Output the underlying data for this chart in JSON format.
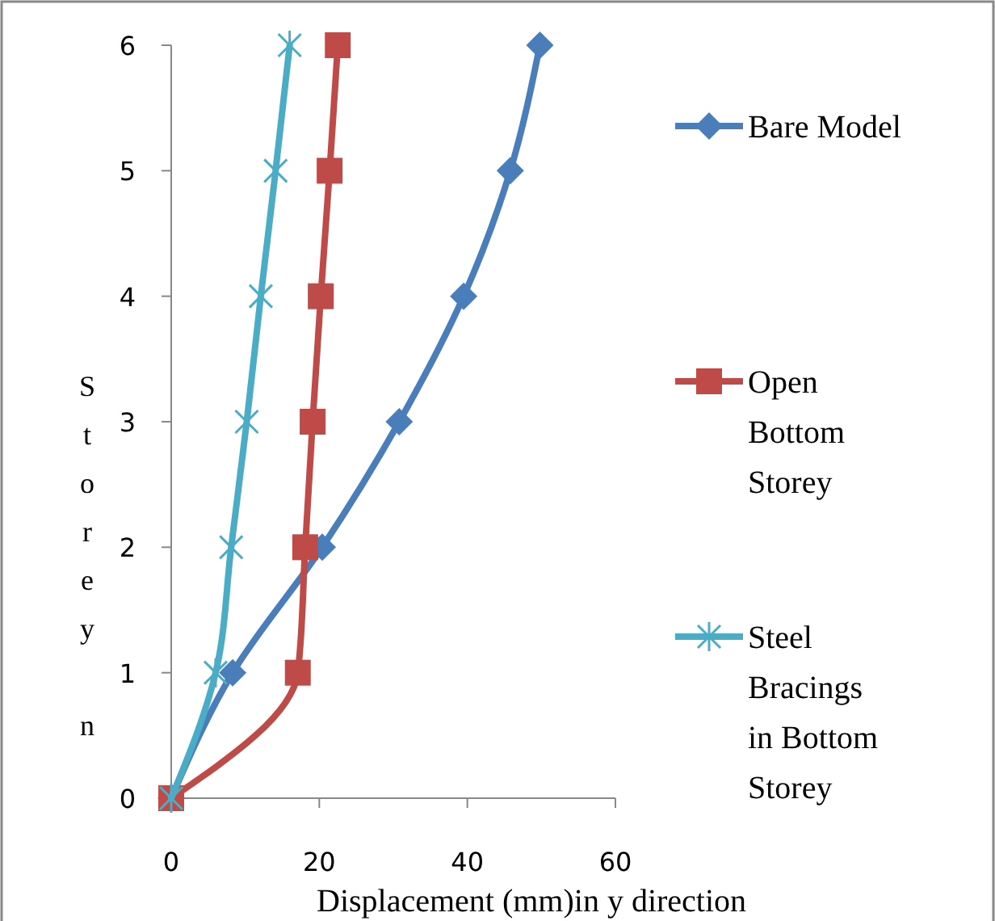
{
  "chart_data": {
    "type": "line",
    "xlabel": "Displacement (mm)in y direction",
    "ylabel": "Storey n",
    "xlim": [
      0,
      60
    ],
    "xticks": [
      0,
      20,
      40,
      60
    ],
    "ylim": [
      0,
      6
    ],
    "yticks": [
      0,
      1,
      2,
      3,
      4,
      5,
      6
    ],
    "grid": false,
    "legend": "right",
    "series": [
      {
        "name": "Bare Model",
        "color": "#4a7ebb",
        "marker": "diamond",
        "x": [
          0,
          8.3,
          20.4,
          30.8,
          39.5,
          45.8,
          49.8
        ],
        "values": [
          0,
          1,
          2,
          3,
          4,
          5,
          6
        ]
      },
      {
        "name": "Open Bottom Storey",
        "color": "#be4b48",
        "marker": "square",
        "x": [
          0,
          17.1,
          18.1,
          19.1,
          20.2,
          21.4,
          22.5
        ],
        "values": [
          0,
          1,
          2,
          3,
          4,
          5,
          6
        ]
      },
      {
        "name": "Steel Bracings in Bottom Storey",
        "color": "#4bacc6",
        "marker": "cross",
        "x": [
          0,
          6.0,
          8.1,
          10.2,
          12.1,
          14.1,
          16.0
        ],
        "values": [
          0,
          1,
          2,
          3,
          4,
          5,
          6
        ]
      }
    ]
  }
}
